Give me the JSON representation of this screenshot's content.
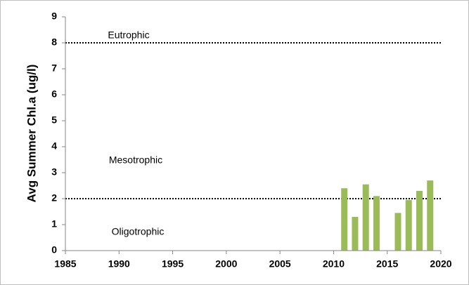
{
  "chart_data": {
    "type": "bar",
    "y_label": "Avg Summer Chl.a  (ug/l)",
    "x": [
      2011,
      2012,
      2013,
      2014,
      2016,
      2017,
      2018,
      2019
    ],
    "values": [
      2.4,
      1.3,
      2.55,
      2.1,
      1.45,
      1.95,
      2.3,
      2.7
    ],
    "color": "#9bbb59",
    "xlim": [
      1985,
      2020
    ],
    "xticks": [
      1985,
      1990,
      1995,
      2000,
      2005,
      2010,
      2015,
      2020
    ],
    "ylim": [
      0,
      9
    ],
    "yticks": [
      0,
      1,
      2,
      3,
      4,
      5,
      6,
      7,
      8,
      9
    ],
    "thresholds": [
      8,
      2
    ],
    "annotations": [
      "Eutrophic",
      "Mesotrophic",
      "Oligotrophic"
    ]
  }
}
